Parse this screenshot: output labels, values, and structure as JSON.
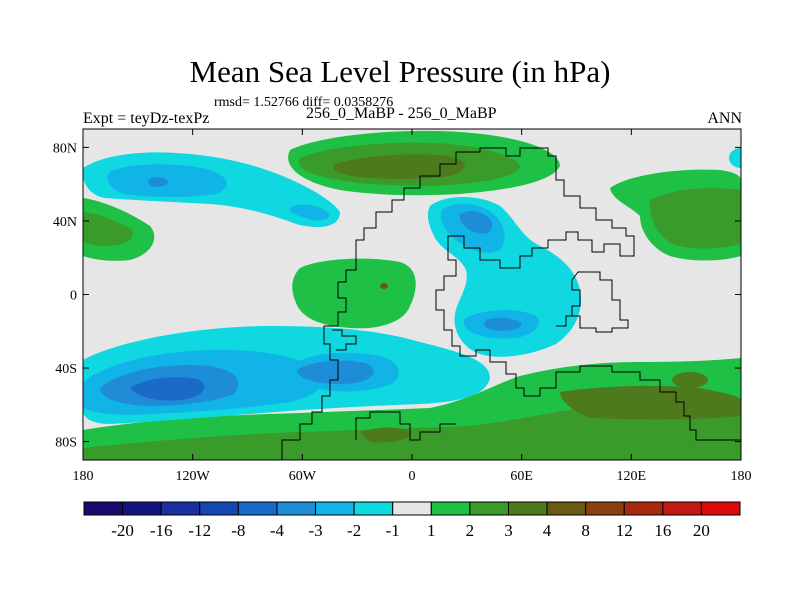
{
  "header": {
    "title": "Mean Sea Level Pressure (in hPa)",
    "stats": "rmsd= 1.52766 diff= 0.0358276",
    "experiment": "Expt = teyDz-texPz",
    "comparison": "256_0_MaBP - 256_0_MaBP",
    "season": "ANN"
  },
  "map": {
    "lon_range": [
      -180,
      180
    ],
    "lat_range": [
      -90,
      90
    ],
    "lon_ticks": [
      {
        "value": -180,
        "label": "180"
      },
      {
        "value": -120,
        "label": "120W"
      },
      {
        "value": -60,
        "label": "60W"
      },
      {
        "value": 0,
        "label": "0"
      },
      {
        "value": 60,
        "label": "60E"
      },
      {
        "value": 120,
        "label": "120E"
      },
      {
        "value": 180,
        "label": "180"
      }
    ],
    "lat_ticks": [
      {
        "value": 80,
        "label": "80N"
      },
      {
        "value": 40,
        "label": "40N"
      },
      {
        "value": 0,
        "label": "0"
      },
      {
        "value": -40,
        "label": "40S"
      },
      {
        "value": -80,
        "label": "80S"
      }
    ],
    "background_color": "#e6e6e6"
  },
  "colorbar": {
    "colors": [
      "#1a0a6e",
      "#14147f",
      "#1a2fa0",
      "#1446b4",
      "#1a6ac8",
      "#1e8cd6",
      "#10b4e6",
      "#10d8e0",
      "#e6e6e6",
      "#1fc046",
      "#3a9a2a",
      "#4e7a1e",
      "#6a5a14",
      "#8a4010",
      "#a82810",
      "#c21a10",
      "#dc0a0a"
    ],
    "labels": [
      "-20",
      "-16",
      "-12",
      "-8",
      "-4",
      "-3",
      "-2",
      "-1",
      "1",
      "2",
      "3",
      "4",
      "8",
      "12",
      "16",
      "20"
    ]
  }
}
